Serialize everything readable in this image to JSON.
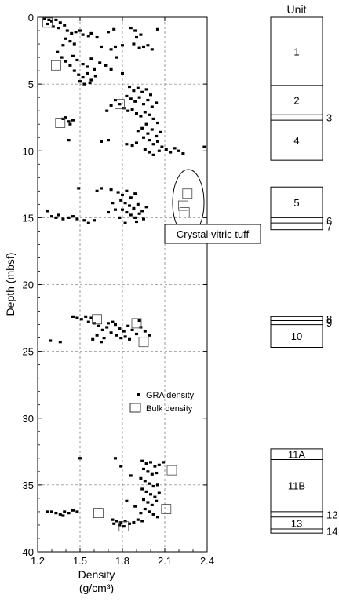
{
  "chart_data": {
    "type": "scatter",
    "xlabel": "Density",
    "xlabel_unit": "(g/cm³)",
    "ylabel": "Depth (mbsf)",
    "xlim": [
      1.2,
      2.4
    ],
    "ylim": [
      0,
      40
    ],
    "y_inverted": true,
    "grid": true,
    "x_ticks": [
      "1.2",
      "1.5",
      "1.8",
      "2.1",
      "2.4"
    ],
    "y_ticks": [
      "0",
      "5",
      "10",
      "15",
      "20",
      "25",
      "30",
      "35",
      "40"
    ],
    "legend_position": "lower-right",
    "series": [
      {
        "name": "GRA density",
        "marker": "small filled square",
        "points": [
          [
            1.25,
            0.1
          ],
          [
            1.28,
            0.2
          ],
          [
            1.3,
            0.3
          ],
          [
            1.33,
            0.2
          ],
          [
            1.36,
            0.4
          ],
          [
            1.39,
            0.6
          ],
          [
            1.27,
            0.5
          ],
          [
            1.31,
            0.7
          ],
          [
            1.35,
            0.8
          ],
          [
            1.41,
            1.0
          ],
          [
            1.44,
            1.2
          ],
          [
            1.47,
            1.1
          ],
          [
            1.5,
            1.0
          ],
          [
            1.52,
            1.3
          ],
          [
            1.56,
            1.4
          ],
          [
            1.58,
            1.2
          ],
          [
            1.4,
            1.6
          ],
          [
            1.43,
            1.8
          ],
          [
            1.46,
            2.0
          ],
          [
            1.38,
            2.1
          ],
          [
            1.62,
            1.5
          ],
          [
            1.65,
            2.2
          ],
          [
            1.72,
            2.4
          ],
          [
            1.75,
            2.2
          ],
          [
            1.7,
            1.1
          ],
          [
            1.74,
            0.9
          ],
          [
            1.8,
            2.1
          ],
          [
            1.88,
            2.0
          ],
          [
            1.92,
            2.3
          ],
          [
            1.95,
            2.2
          ],
          [
            1.98,
            2.1
          ],
          [
            2.01,
            2.4
          ],
          [
            1.9,
            1.5
          ],
          [
            1.93,
            1.3
          ],
          [
            1.86,
            0.8
          ],
          [
            1.89,
            1.0
          ],
          [
            2.05,
            0.9
          ],
          [
            1.34,
            2.6
          ],
          [
            1.37,
            3.0
          ],
          [
            1.4,
            3.3
          ],
          [
            1.45,
            2.9
          ],
          [
            1.48,
            3.2
          ],
          [
            1.52,
            3.5
          ],
          [
            1.55,
            3.7
          ],
          [
            1.58,
            3.1
          ],
          [
            1.6,
            3.9
          ],
          [
            1.43,
            3.6
          ],
          [
            1.46,
            4.0
          ],
          [
            1.49,
            4.3
          ],
          [
            1.52,
            4.5
          ],
          [
            1.55,
            4.2
          ],
          [
            1.58,
            4.7
          ],
          [
            1.61,
            4.4
          ],
          [
            1.64,
            3.4
          ],
          [
            1.68,
            3.6
          ],
          [
            1.72,
            3.9
          ],
          [
            1.76,
            3.0
          ],
          [
            1.8,
            4.2
          ],
          [
            1.5,
            4.8
          ],
          [
            1.53,
            5.0
          ],
          [
            1.57,
            4.9
          ],
          [
            1.85,
            5.2
          ],
          [
            1.88,
            5.5
          ],
          [
            1.91,
            5.3
          ],
          [
            1.94,
            5.6
          ],
          [
            1.97,
            5.4
          ],
          [
            2.0,
            5.8
          ],
          [
            1.83,
            5.9
          ],
          [
            1.86,
            6.1
          ],
          [
            1.89,
            6.3
          ],
          [
            1.92,
            6.0
          ],
          [
            1.95,
            6.5
          ],
          [
            1.98,
            6.2
          ],
          [
            2.01,
            6.7
          ],
          [
            2.04,
            6.4
          ],
          [
            1.75,
            6.2
          ],
          [
            1.78,
            6.5
          ],
          [
            1.81,
            6.8
          ],
          [
            1.84,
            7.0
          ],
          [
            1.87,
            6.9
          ],
          [
            1.9,
            7.2
          ],
          [
            1.93,
            7.4
          ],
          [
            1.96,
            7.1
          ],
          [
            1.99,
            7.3
          ],
          [
            1.72,
            6.6
          ],
          [
            1.69,
            7.0
          ],
          [
            2.02,
            7.6
          ],
          [
            2.05,
            7.9
          ],
          [
            1.97,
            8.0
          ],
          [
            1.94,
            8.3
          ],
          [
            1.91,
            8.5
          ],
          [
            1.98,
            8.7
          ],
          [
            2.01,
            8.4
          ],
          [
            2.04,
            8.9
          ],
          [
            2.07,
            8.6
          ],
          [
            1.95,
            9.0
          ],
          [
            1.99,
            9.2
          ],
          [
            2.02,
            9.5
          ],
          [
            2.05,
            9.3
          ],
          [
            2.08,
            9.7
          ],
          [
            2.11,
            9.9
          ],
          [
            2.14,
            10.1
          ],
          [
            2.17,
            9.8
          ],
          [
            2.2,
            10.0
          ],
          [
            2.23,
            10.2
          ],
          [
            1.96,
            9.9
          ],
          [
            1.99,
            10.1
          ],
          [
            2.02,
            10.3
          ],
          [
            2.06,
            10.0
          ],
          [
            1.9,
            9.4
          ],
          [
            1.87,
            9.6
          ],
          [
            1.83,
            9.5
          ],
          [
            1.65,
            9.3
          ],
          [
            1.7,
            9.2
          ],
          [
            1.42,
            9.2
          ],
          [
            1.38,
            7.6
          ],
          [
            1.42,
            7.8
          ],
          [
            1.45,
            7.7
          ],
          [
            1.4,
            7.5
          ],
          [
            1.43,
            8.0
          ],
          [
            2.38,
            9.7
          ],
          [
            1.72,
            12.9
          ],
          [
            1.77,
            13.1
          ],
          [
            1.8,
            13.3
          ],
          [
            1.83,
            13.0
          ],
          [
            1.86,
            13.5
          ],
          [
            1.89,
            13.2
          ],
          [
            1.79,
            13.7
          ],
          [
            1.82,
            13.9
          ],
          [
            1.85,
            14.1
          ],
          [
            1.88,
            14.3
          ],
          [
            1.91,
            14.0
          ],
          [
            1.94,
            14.5
          ],
          [
            1.97,
            14.2
          ],
          [
            1.8,
            14.4
          ],
          [
            1.83,
            14.6
          ],
          [
            1.86,
            14.8
          ],
          [
            1.89,
            15.0
          ],
          [
            1.92,
            14.7
          ],
          [
            1.95,
            15.1
          ],
          [
            1.78,
            15.0
          ],
          [
            1.75,
            14.4
          ],
          [
            1.73,
            13.9
          ],
          [
            1.7,
            14.6
          ],
          [
            1.62,
            13.0
          ],
          [
            1.65,
            12.8
          ],
          [
            1.27,
            14.5
          ],
          [
            1.3,
            14.9
          ],
          [
            1.33,
            15.0
          ],
          [
            1.35,
            14.8
          ],
          [
            1.38,
            15.1
          ],
          [
            1.42,
            15.0
          ],
          [
            1.45,
            14.9
          ],
          [
            1.48,
            15.1
          ],
          [
            1.53,
            15.2
          ],
          [
            1.56,
            15.4
          ],
          [
            1.6,
            15.2
          ],
          [
            1.9,
            15.3
          ],
          [
            1.82,
            15.4
          ],
          [
            1.49,
            12.8
          ],
          [
            1.45,
            22.4
          ],
          [
            1.48,
            22.5
          ],
          [
            1.51,
            22.6
          ],
          [
            1.54,
            22.4
          ],
          [
            1.58,
            22.5
          ],
          [
            1.56,
            22.8
          ],
          [
            1.6,
            22.9
          ],
          [
            1.63,
            23.1
          ],
          [
            1.66,
            23.4
          ],
          [
            1.69,
            23.2
          ],
          [
            1.72,
            23.6
          ],
          [
            1.75,
            23.0
          ],
          [
            1.78,
            23.3
          ],
          [
            1.81,
            23.5
          ],
          [
            1.84,
            23.1
          ],
          [
            1.87,
            23.4
          ],
          [
            1.9,
            23.7
          ],
          [
            1.93,
            23.2
          ],
          [
            1.96,
            23.5
          ],
          [
            1.99,
            23.8
          ],
          [
            1.76,
            23.8
          ],
          [
            1.79,
            24.0
          ],
          [
            1.82,
            23.9
          ],
          [
            1.85,
            24.1
          ],
          [
            1.7,
            22.9
          ],
          [
            1.73,
            22.8
          ],
          [
            1.67,
            24.0
          ],
          [
            1.62,
            23.8
          ],
          [
            1.59,
            24.1
          ],
          [
            1.65,
            24.3
          ],
          [
            1.29,
            24.2
          ],
          [
            1.36,
            24.3
          ],
          [
            1.92,
            22.7
          ],
          [
            1.5,
            33.0
          ],
          [
            1.75,
            33.0
          ],
          [
            1.94,
            33.2
          ],
          [
            1.97,
            33.4
          ],
          [
            2.0,
            33.3
          ],
          [
            2.03,
            33.6
          ],
          [
            2.06,
            33.5
          ],
          [
            2.09,
            33.3
          ],
          [
            1.95,
            33.8
          ],
          [
            1.98,
            34.0
          ],
          [
            2.01,
            34.2
          ],
          [
            2.04,
            34.1
          ],
          [
            1.93,
            34.5
          ],
          [
            1.96,
            34.7
          ],
          [
            1.99,
            34.9
          ],
          [
            2.02,
            35.1
          ],
          [
            2.05,
            35.0
          ],
          [
            1.94,
            35.3
          ],
          [
            1.97,
            35.5
          ],
          [
            2.0,
            35.7
          ],
          [
            2.03,
            35.9
          ],
          [
            2.06,
            35.6
          ],
          [
            1.95,
            36.1
          ],
          [
            1.98,
            36.3
          ],
          [
            2.01,
            36.5
          ],
          [
            2.04,
            36.2
          ],
          [
            1.96,
            36.8
          ],
          [
            1.99,
            37.0
          ],
          [
            2.02,
            37.2
          ],
          [
            2.05,
            37.4
          ],
          [
            1.93,
            37.1
          ],
          [
            1.79,
            33.6
          ],
          [
            1.86,
            34.3
          ],
          [
            1.89,
            36.6
          ],
          [
            1.83,
            36.2
          ],
          [
            1.73,
            37.6
          ],
          [
            1.76,
            37.7
          ],
          [
            1.79,
            37.8
          ],
          [
            1.82,
            37.7
          ],
          [
            1.85,
            37.9
          ],
          [
            1.88,
            37.8
          ],
          [
            1.91,
            37.6
          ],
          [
            1.94,
            37.7
          ],
          [
            1.78,
            38.0
          ],
          [
            1.81,
            38.1
          ],
          [
            1.74,
            37.9
          ],
          [
            1.3,
            37.0
          ],
          [
            1.33,
            37.1
          ],
          [
            1.36,
            37.2
          ],
          [
            1.39,
            37.0
          ],
          [
            1.42,
            37.1
          ],
          [
            1.45,
            36.9
          ],
          [
            1.48,
            37.0
          ],
          [
            1.38,
            37.3
          ],
          [
            1.27,
            37.0
          ]
        ]
      },
      {
        "name": "Bulk density",
        "marker": "open square",
        "points": [
          [
            1.27,
            0.4
          ],
          [
            1.33,
            3.6
          ],
          [
            1.36,
            7.9
          ],
          [
            1.78,
            6.5
          ],
          [
            2.26,
            13.2
          ],
          [
            2.23,
            14.1
          ],
          [
            2.24,
            14.6
          ],
          [
            1.62,
            22.6
          ],
          [
            1.9,
            22.9
          ],
          [
            1.95,
            24.3
          ],
          [
            2.15,
            33.9
          ],
          [
            1.63,
            37.1
          ],
          [
            2.11,
            36.8
          ],
          [
            1.81,
            38.1
          ]
        ]
      }
    ],
    "annotation": "Crystal vitric tuff",
    "units_column": {
      "header": "Unit",
      "units": [
        {
          "label": "1",
          "top": 0.0,
          "bottom": 5.1,
          "label_side": "inside"
        },
        {
          "label": "2",
          "top": 5.1,
          "bottom": 7.3,
          "label_side": "inside"
        },
        {
          "label": "3",
          "top": 7.3,
          "bottom": 7.7,
          "label_side": "outside"
        },
        {
          "label": "4",
          "top": 7.7,
          "bottom": 10.7,
          "label_side": "inside"
        },
        {
          "label": "5",
          "top": 12.7,
          "bottom": 15.0,
          "label_side": "inside"
        },
        {
          "label": "6",
          "top": 15.0,
          "bottom": 15.4,
          "label_side": "outside"
        },
        {
          "label": "7",
          "top": 15.4,
          "bottom": 15.9,
          "label_side": "outside"
        },
        {
          "label": "8",
          "top": 22.4,
          "bottom": 22.7,
          "label_side": "outside"
        },
        {
          "label": "9",
          "top": 22.7,
          "bottom": 23.0,
          "label_side": "outside"
        },
        {
          "label": "10",
          "top": 23.0,
          "bottom": 24.7,
          "label_side": "inside"
        },
        {
          "label": "11A",
          "top": 32.3,
          "bottom": 33.1,
          "label_side": "inside"
        },
        {
          "label": "11B",
          "top": 33.1,
          "bottom": 37.0,
          "label_side": "inside"
        },
        {
          "label": "12",
          "top": 37.0,
          "bottom": 37.4,
          "label_side": "outside"
        },
        {
          "label": "13",
          "top": 37.4,
          "bottom": 38.3,
          "label_side": "inside"
        },
        {
          "label": "14",
          "top": 38.3,
          "bottom": 38.6,
          "label_side": "outside"
        }
      ]
    }
  }
}
